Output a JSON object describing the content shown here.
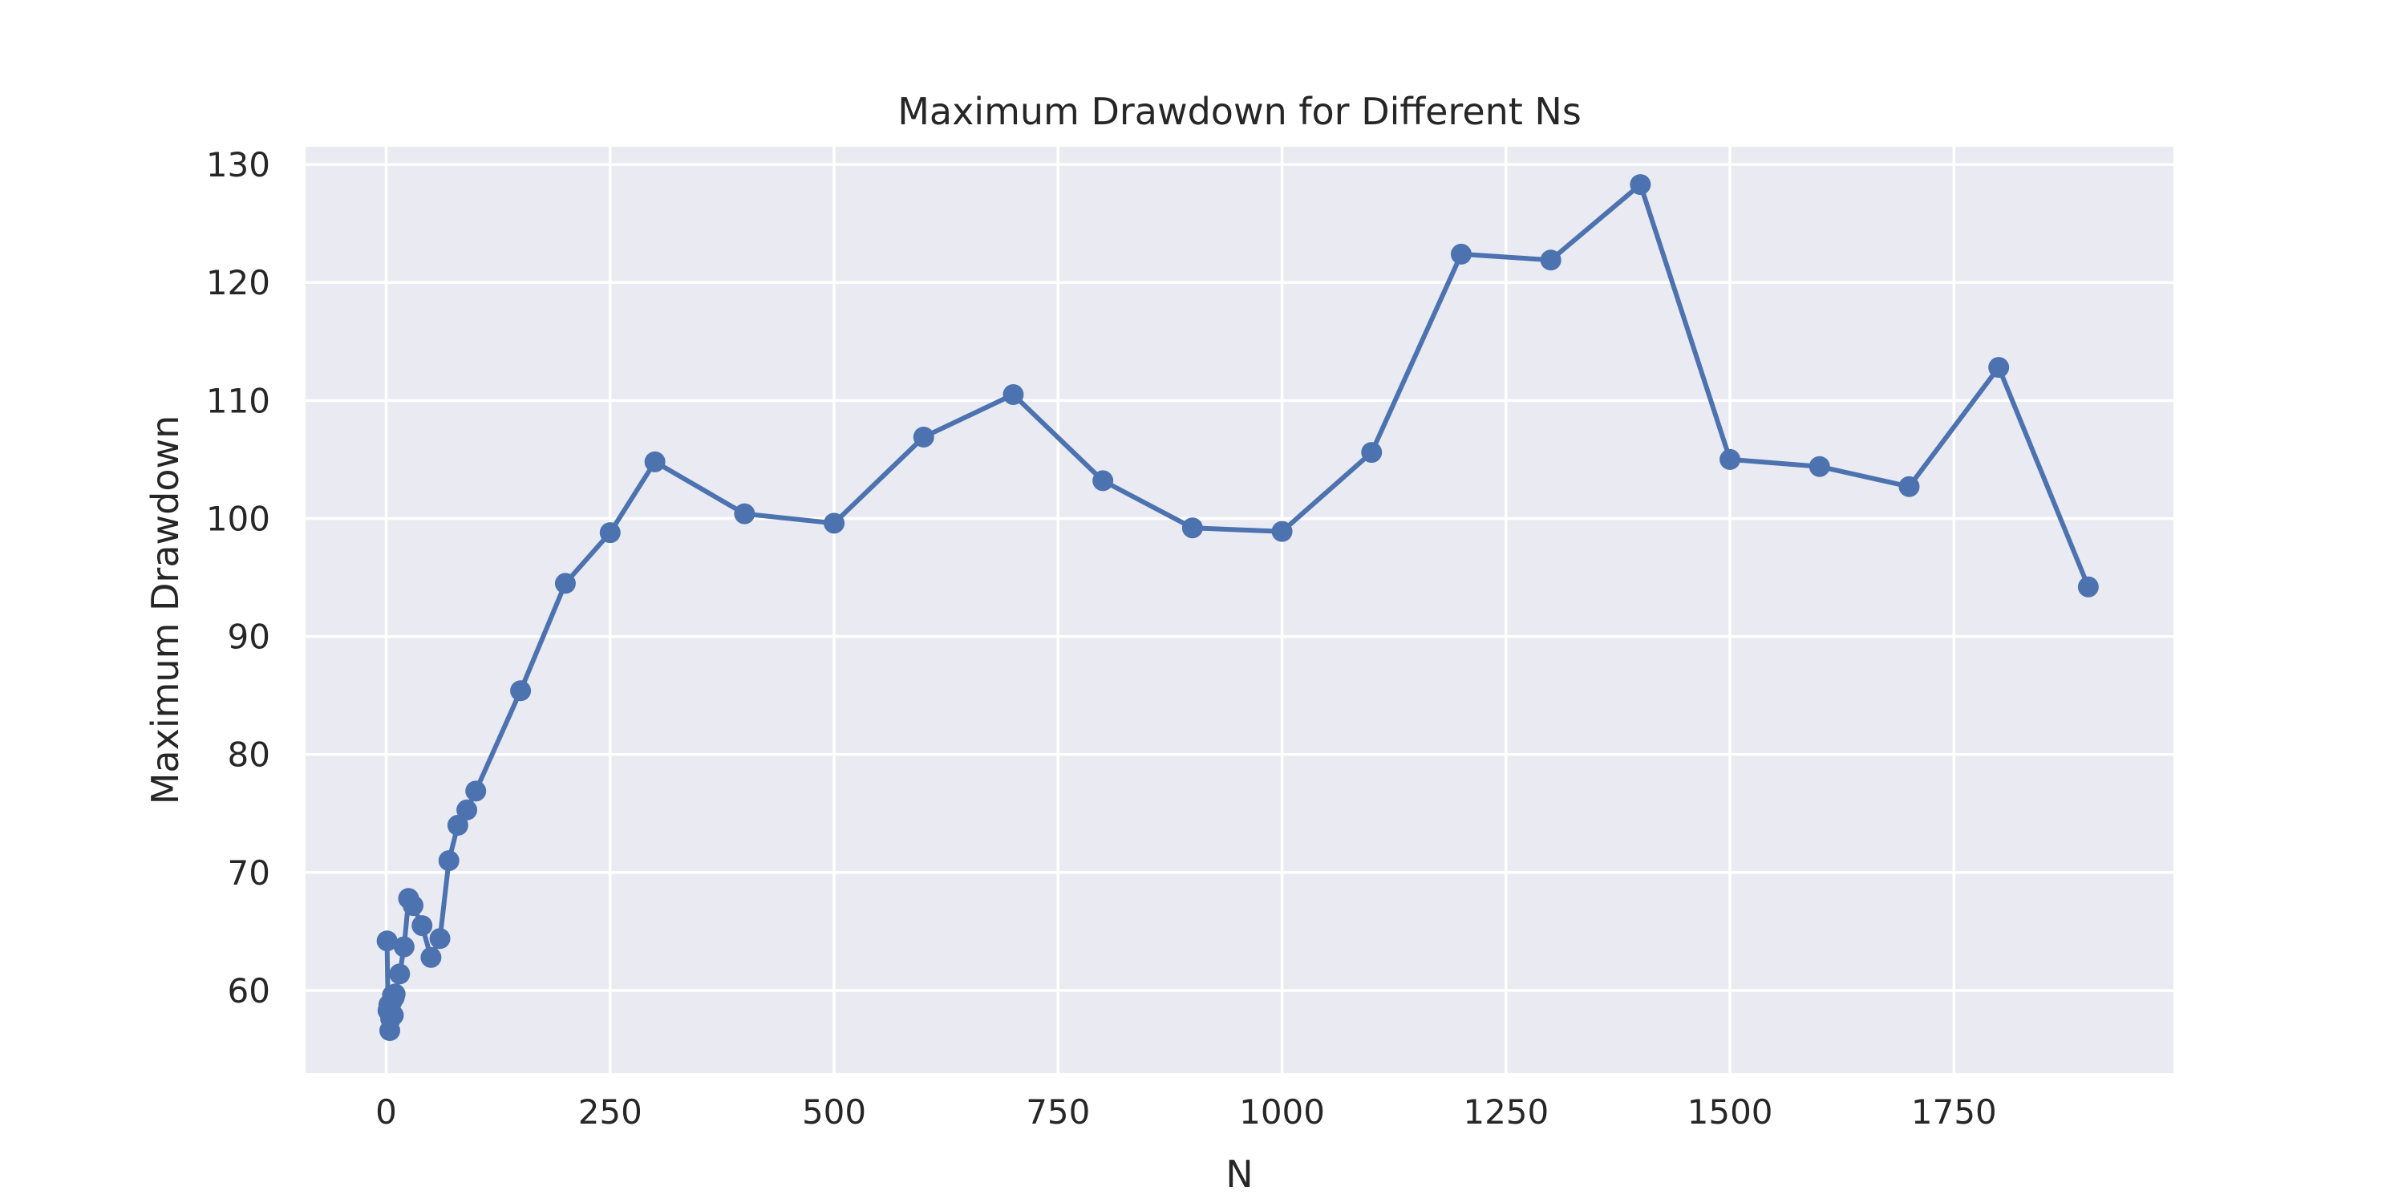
{
  "chart_data": {
    "type": "line",
    "title": "Maximum Drawdown for Different Ns",
    "xlabel": "N",
    "ylabel": "Maximum Drawdown",
    "xlim": [
      -90,
      1995
    ],
    "ylim": [
      53,
      131.5
    ],
    "xticks": [
      0,
      250,
      500,
      750,
      1000,
      1250,
      1500,
      1750
    ],
    "yticks": [
      60,
      70,
      80,
      90,
      100,
      110,
      120,
      130
    ],
    "grid": true,
    "colors": {
      "series": "#4c72b0",
      "plot_background": "#eaeaf2",
      "grid": "#ffffff"
    },
    "series": [
      {
        "x": [
          1,
          2,
          3,
          4,
          5,
          6,
          7,
          8,
          9,
          10,
          15,
          20,
          25,
          30,
          40,
          50,
          60,
          70,
          80,
          90,
          100,
          150,
          200,
          250,
          300,
          400,
          500,
          600,
          700,
          800,
          900,
          1000,
          1100,
          1200,
          1300,
          1400,
          1500,
          1600,
          1700,
          1800,
          1900
        ],
        "y": [
          64.2,
          58.3,
          58.8,
          56.6,
          57.6,
          59.0,
          59.6,
          57.9,
          59.4,
          59.7,
          61.4,
          63.7,
          67.8,
          67.2,
          65.5,
          62.8,
          64.4,
          71.0,
          74.0,
          75.3,
          76.9,
          85.4,
          94.5,
          98.8,
          104.8,
          100.4,
          99.6,
          106.9,
          110.5,
          103.2,
          99.2,
          98.9,
          105.6,
          122.4,
          121.9,
          128.3,
          105.0,
          104.4,
          102.7,
          112.8,
          94.2
        ]
      }
    ]
  }
}
